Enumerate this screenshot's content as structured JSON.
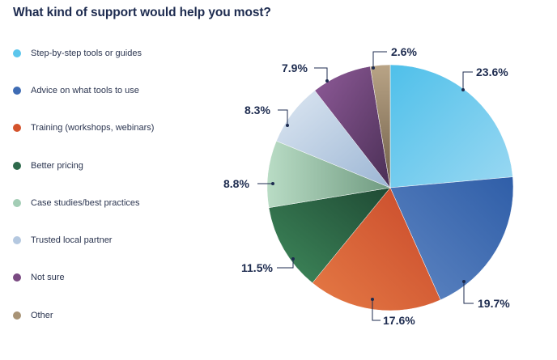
{
  "title": "What kind of support would help you most?",
  "legend": {
    "items": [
      {
        "label": "Step-by-step tools or guides",
        "color": "#5cc6ec"
      },
      {
        "label": "Advice on what tools to use",
        "color": "#3f6cb4"
      },
      {
        "label": "Training (workshops, webinars)",
        "color": "#d4532c"
      },
      {
        "label": "Better pricing",
        "color": "#2e6a4c"
      },
      {
        "label": "Case studies/best practices",
        "color": "#a3cdb5"
      },
      {
        "label": "Trusted local partner",
        "color": "#b4c8e0"
      },
      {
        "label": "Not sure",
        "color": "#7a4a82"
      },
      {
        "label": "Other",
        "color": "#a89376"
      }
    ]
  },
  "labels": [
    "23.6%",
    "19.7%",
    "17.6%",
    "11.5%",
    "8.8%",
    "8.3%",
    "7.9%",
    "2.6%"
  ],
  "chart_data": {
    "type": "pie",
    "title": "What kind of support would help you most?",
    "categories": [
      "Step-by-step tools or guides",
      "Advice on what tools to use",
      "Training (workshops, webinars)",
      "Better pricing",
      "Case studies/best practices",
      "Trusted local partner",
      "Not sure",
      "Other"
    ],
    "values": [
      23.6,
      19.7,
      17.6,
      11.5,
      8.8,
      8.3,
      7.9,
      2.6
    ],
    "unit": "%",
    "legend_position": "left",
    "colors": [
      "#5cc6ec",
      "#3f6cb4",
      "#d4532c",
      "#2e6a4c",
      "#a3cdb5",
      "#b4c8e0",
      "#7a4a82",
      "#a89376"
    ]
  }
}
